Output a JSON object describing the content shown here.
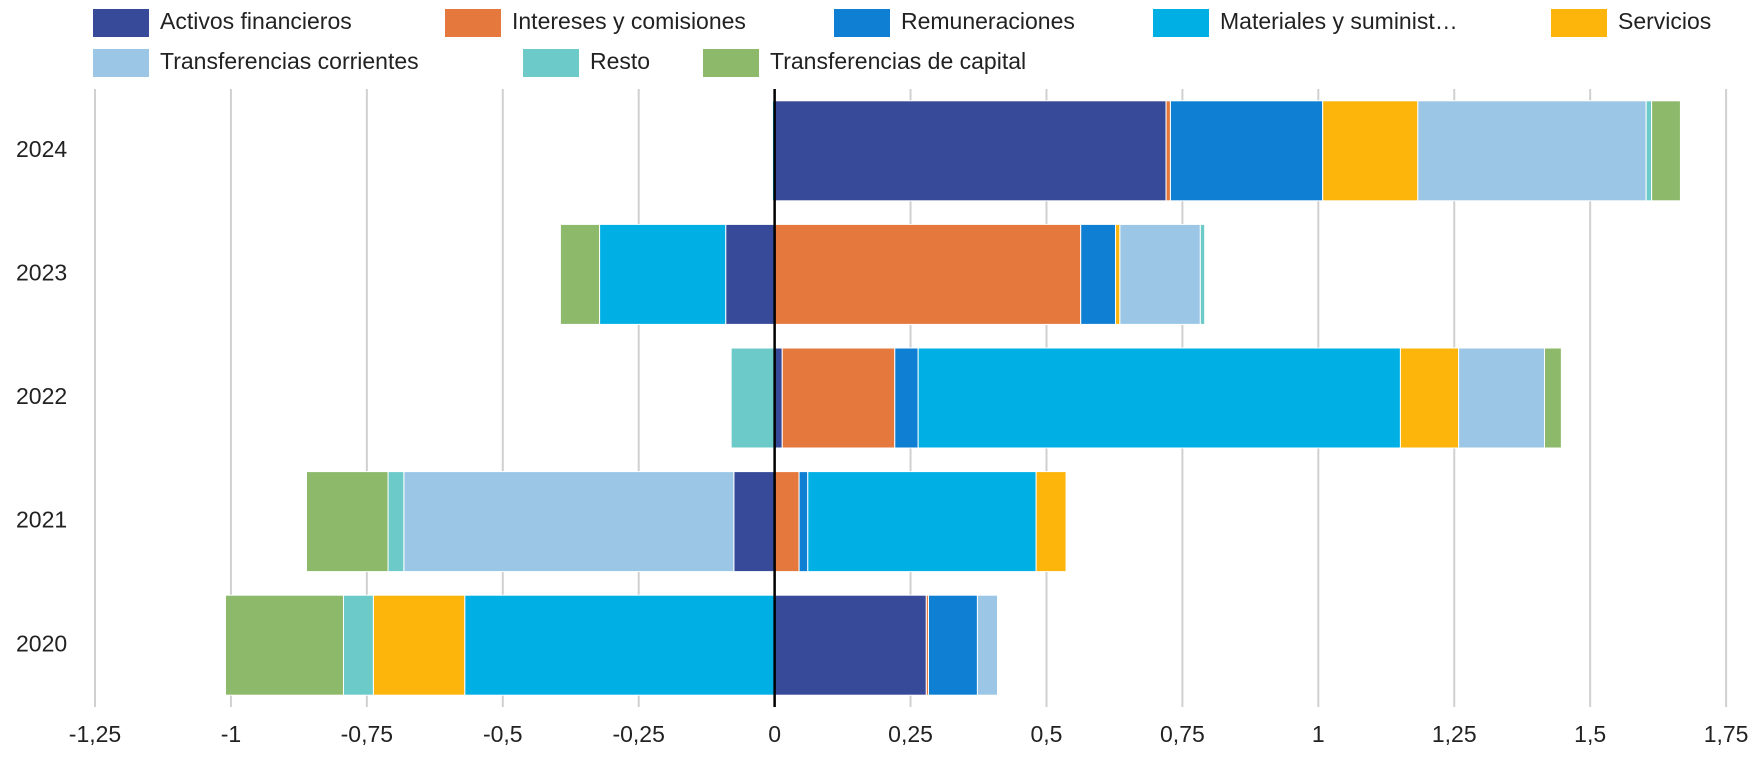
{
  "chart_data": {
    "type": "bar",
    "orientation": "horizontal",
    "stacked": "diverging",
    "categories": [
      "2024",
      "2023",
      "2022",
      "2021",
      "2020"
    ],
    "series": [
      {
        "name": "Activos financieros",
        "color": "#374a9a",
        "values": [
          0.72,
          -0.09,
          0.014,
          -0.075,
          0.279
        ]
      },
      {
        "name": "Intereses y comisiones",
        "color": "#e5793d",
        "values": [
          0.008,
          0.563,
          0.207,
          0.045,
          0.004
        ]
      },
      {
        "name": "Remuneraciones",
        "color": "#0e7fd3",
        "values": [
          0.28,
          0.064,
          0.043,
          0.016,
          0.09
        ]
      },
      {
        "name": "Materiales y suminist…",
        "color": "#00b0e4",
        "values": [
          -0.004,
          -0.232,
          0.887,
          0.42,
          -0.57
        ]
      },
      {
        "name": "Servicios",
        "color": "#fdb50c",
        "values": [
          0.175,
          0.008,
          0.107,
          0.055,
          -0.168
        ]
      },
      {
        "name": "Transferencias corrientes",
        "color": "#9bc6e5",
        "values": [
          0.42,
          0.148,
          0.158,
          -0.607,
          0.037
        ]
      },
      {
        "name": "Resto",
        "color": "#6ccbc8",
        "values": [
          0.01,
          0.008,
          -0.08,
          -0.029,
          -0.055
        ]
      },
      {
        "name": "Transferencias de capital",
        "color": "#8db96b",
        "values": [
          0.053,
          -0.072,
          0.031,
          -0.15,
          -0.217
        ]
      }
    ],
    "xlim": [
      -1.35,
      1.78
    ],
    "xticks": [
      {
        "value": -1.25,
        "label": "-1,25"
      },
      -1,
      {
        "value": -0.75,
        "label": "-0,75"
      },
      {
        "value": -0.5,
        "label": "-0,5"
      },
      {
        "value": -0.25,
        "label": "-0,25"
      },
      0,
      {
        "value": 0.25,
        "label": "0,25"
      },
      {
        "value": 0.5,
        "label": "0,5"
      },
      {
        "value": 0.75,
        "label": "0,75"
      },
      1,
      {
        "value": 1.25,
        "label": "1,25"
      },
      {
        "value": 1.5,
        "label": "1,5"
      },
      {
        "value": 1.75,
        "label": "1,75"
      }
    ],
    "grid": true,
    "legend": "top"
  }
}
